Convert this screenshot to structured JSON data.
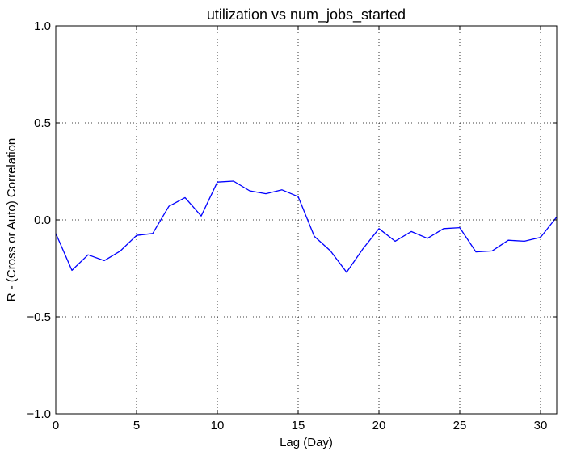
{
  "chart_data": {
    "type": "line",
    "title": "utilization vs num_jobs_started",
    "xlabel": "Lag (Day)",
    "ylabel": "R - (Cross or Auto) Correlation",
    "xlim": [
      0,
      31
    ],
    "ylim": [
      -1.0,
      1.0
    ],
    "grid": true,
    "x_ticks": [
      0,
      5,
      10,
      15,
      20,
      25,
      30
    ],
    "x_tick_labels": [
      "0",
      "5",
      "10",
      "15",
      "20",
      "25",
      "30"
    ],
    "y_ticks": [
      -1.0,
      -0.5,
      0.0,
      0.5,
      1.0
    ],
    "y_tick_labels": [
      "−1.0",
      "−0.5",
      "0.0",
      "0.5",
      "1.0"
    ],
    "series": [
      {
        "color": "#0000ff",
        "x": [
          0,
          1,
          2,
          3,
          4,
          5,
          6,
          7,
          8,
          9,
          10,
          11,
          12,
          13,
          14,
          15,
          16,
          17,
          18,
          19,
          20,
          21,
          22,
          23,
          24,
          25,
          26,
          27,
          28,
          29,
          30,
          31
        ],
        "values": [
          -0.07,
          -0.26,
          -0.18,
          -0.21,
          -0.16,
          -0.08,
          -0.07,
          0.07,
          0.115,
          0.02,
          0.195,
          0.2,
          0.15,
          0.135,
          0.155,
          0.12,
          -0.085,
          -0.16,
          -0.27,
          -0.15,
          -0.045,
          -0.11,
          -0.06,
          -0.095,
          -0.045,
          -0.04,
          -0.165,
          -0.16,
          -0.105,
          -0.11,
          -0.09,
          0.015
        ]
      }
    ]
  }
}
